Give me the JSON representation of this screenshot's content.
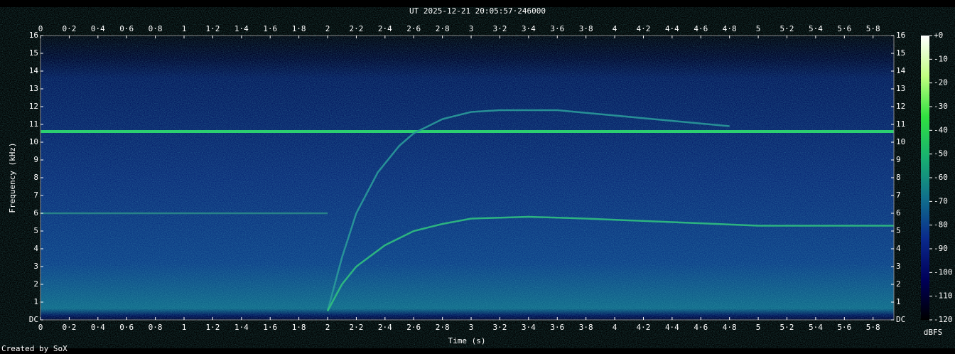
{
  "chart_data": {
    "type": "spectrogram",
    "title": "UT 2025-12-21 20:05:57·246000",
    "xlabel": "Time (s)",
    "ylabel": "Frequency (kHz)",
    "zlabel": "dBFS",
    "credit": "Created by SoX",
    "xlim": [
      0,
      5.945
    ],
    "ylim": [
      0,
      16
    ],
    "zlim": [
      -120,
      0
    ],
    "xticks": [
      0,
      {
        "value": 0.2,
        "label": "0·2"
      },
      {
        "value": 0.4,
        "label": "0·4"
      },
      {
        "value": 0.6,
        "label": "0·6"
      },
      {
        "value": 0.8,
        "label": "0·8"
      },
      1,
      {
        "value": 1.2,
        "label": "1·2"
      },
      {
        "value": 1.4,
        "label": "1·4"
      },
      {
        "value": 1.6,
        "label": "1·6"
      },
      {
        "value": 1.8,
        "label": "1·8"
      },
      2,
      {
        "value": 2.2,
        "label": "2·2"
      },
      {
        "value": 2.4,
        "label": "2·4"
      },
      {
        "value": 2.6,
        "label": "2·6"
      },
      {
        "value": 2.8,
        "label": "2·8"
      },
      3,
      {
        "value": 3.2,
        "label": "3·2"
      },
      {
        "value": 3.4,
        "label": "3·4"
      },
      {
        "value": 3.6,
        "label": "3·6"
      },
      {
        "value": 3.8,
        "label": "3·8"
      },
      4,
      {
        "value": 4.2,
        "label": "4·2"
      },
      {
        "value": 4.4,
        "label": "4·4"
      },
      {
        "value": 4.6,
        "label": "4·6"
      },
      {
        "value": 4.8,
        "label": "4·8"
      },
      5,
      {
        "value": 5.2,
        "label": "5·2"
      },
      {
        "value": 5.4,
        "label": "5·4"
      },
      {
        "value": 5.6,
        "label": "5·6"
      },
      {
        "value": 5.8,
        "label": "5·8"
      }
    ],
    "yticks": [
      {
        "value": 0,
        "label": "DC"
      },
      1,
      2,
      3,
      4,
      5,
      6,
      7,
      8,
      9,
      10,
      11,
      12,
      13,
      14,
      15,
      16
    ],
    "zticks": [
      {
        "value": 0,
        "label": "+0"
      },
      -10,
      -20,
      -30,
      -40,
      -50,
      -60,
      -70,
      -80,
      -90,
      -100,
      -110,
      -120
    ],
    "colormap": [
      "#000000",
      "#00005a",
      "#0a2a8c",
      "#10708c",
      "#18b070",
      "#30e040",
      "#c0ff80",
      "#ffffff"
    ],
    "series": [
      {
        "color": "#30e070",
        "x": [
          0,
          5.945
        ],
        "values": [
          10.6,
          10.6
        ]
      },
      {
        "color": "#2a8a8a",
        "x": [
          0,
          2.0
        ],
        "values": [
          6.0,
          6.0
        ]
      },
      {
        "color": "#2a9a9a",
        "x": [
          2.0,
          2.1,
          2.2,
          2.35,
          2.5,
          2.6,
          2.8,
          3.0,
          3.2,
          3.6,
          4.0,
          4.4,
          4.8
        ],
        "values": [
          0.5,
          3.5,
          6,
          8.3,
          9.8,
          10.5,
          11.3,
          11.7,
          11.8,
          11.8,
          11.5,
          11.2,
          10.9
        ]
      },
      {
        "color": "#30c080",
        "x": [
          2.0,
          2.1,
          2.2,
          2.4,
          2.6,
          2.8,
          3.0,
          3.4,
          3.8,
          4.4,
          5.0,
          5.945
        ],
        "values": [
          0.5,
          2,
          3,
          4.2,
          5,
          5.4,
          5.7,
          5.8,
          5.7,
          5.5,
          5.3,
          5.3
        ]
      }
    ]
  }
}
